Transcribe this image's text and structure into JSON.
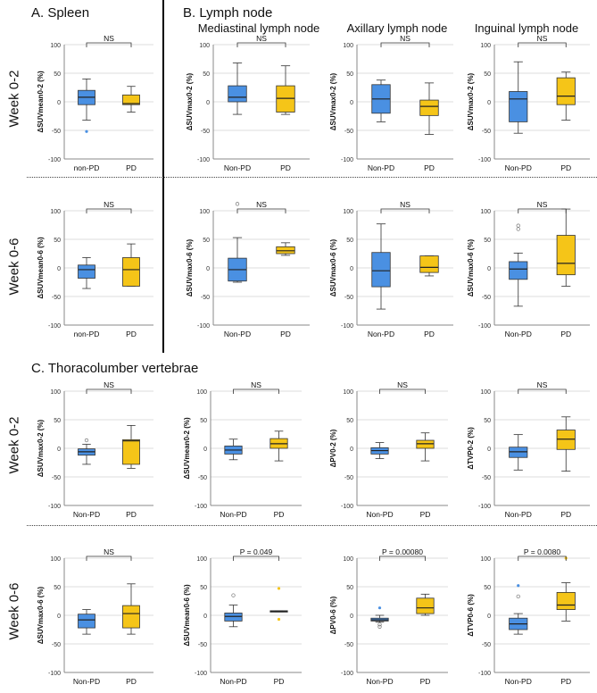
{
  "headers": {
    "spleen": "A.  Spleen",
    "lymph": "B.  Lymph node",
    "vertebrae": "C.  Thoracolumber vertebrae",
    "mediastinal": "Mediastinal lymph node",
    "axillary": "Axillary lymph node",
    "inguinal": "Inguinal lymph node"
  },
  "row_labels": {
    "a_w02": "Week 0-2",
    "a_w06": "Week 0-6",
    "c_w02": "Week 0-2",
    "c_w06": "Week 0-6"
  },
  "colors": {
    "nonpd": "#4a90e2",
    "pd": "#f5c518",
    "grid": "#dddddd"
  },
  "chart_data": [
    {
      "id": "a_spleen_w02",
      "type": "box",
      "ylabel": "ΔSUVmean0-2 (%)",
      "ylim": [
        -100,
        100
      ],
      "yticks": [
        -100,
        -50,
        0,
        50,
        100
      ],
      "categories": [
        "non-PD",
        "PD"
      ],
      "annotation": "NS",
      "boxes": [
        {
          "q1": -5,
          "median": 8,
          "q3": 20,
          "min": -32,
          "max": 40,
          "outliers": [
            {
              "y": -52,
              "style": "dot"
            }
          ]
        },
        {
          "q1": -5,
          "median": -3,
          "q3": 12,
          "min": -18,
          "max": 27,
          "outliers": []
        }
      ]
    },
    {
      "id": "b_med_w02",
      "type": "box",
      "ylabel": "ΔSUVmax0-2 (%)",
      "ylim": [
        -100,
        100
      ],
      "yticks": [
        -100,
        -50,
        0,
        50,
        100
      ],
      "categories": [
        "Non-PD",
        "PD"
      ],
      "annotation": "NS",
      "boxes": [
        {
          "q1": 0,
          "median": 8,
          "q3": 28,
          "min": -22,
          "max": 68,
          "outliers": []
        },
        {
          "q1": -18,
          "median": 6,
          "q3": 28,
          "min": -22,
          "max": 63,
          "outliers": []
        }
      ]
    },
    {
      "id": "b_ax_w02",
      "type": "box",
      "ylabel": "ΔSUVmax0-2 (%)",
      "ylim": [
        -100,
        100
      ],
      "yticks": [
        -100,
        -50,
        0,
        50,
        100
      ],
      "categories": [
        "Non-PD",
        "PD"
      ],
      "annotation": "NS",
      "boxes": [
        {
          "q1": -20,
          "median": 5,
          "q3": 30,
          "min": -35,
          "max": 38,
          "outliers": []
        },
        {
          "q1": -24,
          "median": -8,
          "q3": 3,
          "min": -57,
          "max": 33,
          "outliers": []
        }
      ]
    },
    {
      "id": "b_ing_w02",
      "type": "box",
      "ylabel": "ΔSUVmax0-2 (%)",
      "ylim": [
        -100,
        100
      ],
      "yticks": [
        -100,
        -50,
        0,
        50,
        100
      ],
      "categories": [
        "Non-PD",
        "PD"
      ],
      "annotation": "NS",
      "boxes": [
        {
          "q1": -35,
          "median": 5,
          "q3": 18,
          "min": -55,
          "max": 70,
          "outliers": []
        },
        {
          "q1": -5,
          "median": 10,
          "q3": 42,
          "min": -32,
          "max": 52,
          "outliers": []
        }
      ]
    },
    {
      "id": "a_spleen_w06",
      "type": "box",
      "ylabel": "ΔSUVmean0-6 (%)",
      "ylim": [
        -100,
        100
      ],
      "yticks": [
        -100,
        -50,
        0,
        50,
        100
      ],
      "categories": [
        "non-PD",
        "PD"
      ],
      "annotation": "NS",
      "boxes": [
        {
          "q1": -18,
          "median": -3,
          "q3": 5,
          "min": -36,
          "max": 18,
          "outliers": []
        },
        {
          "q1": -32,
          "median": -3,
          "q3": 18,
          "min": -32,
          "max": 42,
          "outliers": []
        }
      ]
    },
    {
      "id": "b_med_w06",
      "type": "box",
      "ylabel": "ΔSUVmax0-6 (%)",
      "ylim": [
        -100,
        100
      ],
      "yticks": [
        -100,
        -50,
        0,
        50,
        100
      ],
      "categories": [
        "Non-PD",
        "PD"
      ],
      "annotation": "NS",
      "boxes": [
        {
          "q1": -23,
          "median": -3,
          "q3": 17,
          "min": -25,
          "max": 53,
          "outliers": [
            {
              "y": 112,
              "style": "circle"
            }
          ]
        },
        {
          "q1": 25,
          "median": 30,
          "q3": 37,
          "min": 22,
          "max": 44,
          "outliers": []
        }
      ]
    },
    {
      "id": "b_ax_w06",
      "type": "box",
      "ylabel": "ΔSUVmax0-6 (%)",
      "ylim": [
        -100,
        100
      ],
      "yticks": [
        -100,
        -50,
        0,
        50,
        100
      ],
      "categories": [
        "Non-PD",
        "PD"
      ],
      "annotation": "NS",
      "boxes": [
        {
          "q1": -33,
          "median": -5,
          "q3": 27,
          "min": -72,
          "max": 77,
          "outliers": []
        },
        {
          "q1": -8,
          "median": 1,
          "q3": 21,
          "min": -14,
          "max": 21,
          "outliers": []
        }
      ]
    },
    {
      "id": "b_ing_w06",
      "type": "box",
      "ylabel": "ΔSUVmax0-6 (%)",
      "ylim": [
        -100,
        100
      ],
      "yticks": [
        -100,
        -50,
        0,
        50,
        100
      ],
      "categories": [
        "Non-PD",
        "PD"
      ],
      "annotation": "NS",
      "boxes": [
        {
          "q1": -20,
          "median": -2,
          "q3": 11,
          "min": -67,
          "max": 26,
          "outliers": [
            {
              "y": 74,
              "style": "circle"
            },
            {
              "y": 68,
              "style": "circle"
            }
          ]
        },
        {
          "q1": -12,
          "median": 8,
          "q3": 57,
          "min": -32,
          "max": 103,
          "outliers": []
        }
      ]
    },
    {
      "id": "c_suvmax_w02",
      "type": "box",
      "ylabel": "ΔSUVmax0-2 (%)",
      "ylim": [
        -100,
        100
      ],
      "yticks": [
        -100,
        -50,
        0,
        50,
        100
      ],
      "categories": [
        "Non-PD",
        "PD"
      ],
      "annotation": "NS",
      "boxes": [
        {
          "q1": -12,
          "median": -6,
          "q3": -1,
          "min": -28,
          "max": 7,
          "outliers": [
            {
              "y": 14,
              "style": "circle"
            }
          ]
        },
        {
          "q1": -28,
          "median": 13,
          "q3": 15,
          "min": -35,
          "max": 40,
          "outliers": []
        }
      ]
    },
    {
      "id": "c_suvmean_w02",
      "type": "box",
      "ylabel": "ΔSUVmean0-2 (%)",
      "ylim": [
        -100,
        100
      ],
      "yticks": [
        -100,
        -50,
        0,
        50,
        100
      ],
      "categories": [
        "Non-PD",
        "PD"
      ],
      "annotation": "NS",
      "boxes": [
        {
          "q1": -10,
          "median": -3,
          "q3": 4,
          "min": -20,
          "max": 16,
          "outliers": []
        },
        {
          "q1": 0,
          "median": 8,
          "q3": 17,
          "min": -22,
          "max": 30,
          "outliers": []
        }
      ]
    },
    {
      "id": "c_pv_w02",
      "type": "box",
      "ylabel": "ΔPV0-2 (%)",
      "ylim": [
        -100,
        100
      ],
      "yticks": [
        -100,
        -50,
        0,
        50,
        100
      ],
      "categories": [
        "Non-PD",
        "PD"
      ],
      "annotation": "NS",
      "boxes": [
        {
          "q1": -10,
          "median": -4,
          "q3": 1,
          "min": -18,
          "max": 10,
          "outliers": []
        },
        {
          "q1": 0,
          "median": 8,
          "q3": 14,
          "min": -22,
          "max": 27,
          "outliers": []
        }
      ]
    },
    {
      "id": "c_tv_w02",
      "type": "box",
      "ylabel": "ΔTVP0-2 (%)",
      "ylim": [
        -100,
        100
      ],
      "yticks": [
        -100,
        -50,
        0,
        50,
        100
      ],
      "categories": [
        "Non-PD",
        "PD"
      ],
      "annotation": "NS",
      "boxes": [
        {
          "q1": -16,
          "median": -6,
          "q3": 2,
          "min": -38,
          "max": 24,
          "outliers": []
        },
        {
          "q1": -2,
          "median": 16,
          "q3": 32,
          "min": -40,
          "max": 55,
          "outliers": []
        }
      ]
    },
    {
      "id": "c_suvmax_w06",
      "type": "box",
      "ylabel": "ΔSUVmax0-6 (%)",
      "ylim": [
        -100,
        100
      ],
      "yticks": [
        -100,
        -50,
        0,
        50,
        100
      ],
      "categories": [
        "Non-PD",
        "PD"
      ],
      "annotation": "NS",
      "boxes": [
        {
          "q1": -22,
          "median": -8,
          "q3": 2,
          "min": -33,
          "max": 10,
          "outliers": []
        },
        {
          "q1": -22,
          "median": 3,
          "q3": 17,
          "min": -33,
          "max": 55,
          "outliers": []
        }
      ]
    },
    {
      "id": "c_suvmean_w06",
      "type": "box",
      "ylabel": "ΔSUVmean0-6 (%)",
      "ylim": [
        -100,
        100
      ],
      "yticks": [
        -100,
        -50,
        0,
        50,
        100
      ],
      "categories": [
        "Non-PD",
        "PD"
      ],
      "annotation": "P = 0.049",
      "boxes": [
        {
          "q1": -10,
          "median": -2,
          "q3": 4,
          "min": -20,
          "max": 18,
          "outliers": [
            {
              "y": 35,
              "style": "circle"
            }
          ]
        },
        {
          "q1": 6,
          "median": 7,
          "q3": 8,
          "min": 6,
          "max": 8,
          "outliers": [
            {
              "y": 47,
              "style": "dot"
            },
            {
              "y": -7,
              "style": "dot"
            }
          ]
        }
      ]
    },
    {
      "id": "c_pv_w06",
      "type": "box",
      "ylabel": "ΔPV0-6 (%)",
      "ylim": [
        -100,
        100
      ],
      "yticks": [
        -100,
        -50,
        0,
        50,
        100
      ],
      "categories": [
        "Non-PD",
        "PD"
      ],
      "annotation": "P = 0.00080",
      "boxes": [
        {
          "q1": -10,
          "median": -8,
          "q3": -5,
          "min": -12,
          "max": 0,
          "outliers": [
            {
              "y": 13,
              "style": "dot"
            },
            {
              "y": -16,
              "style": "circle"
            },
            {
              "y": -20,
              "style": "circle"
            }
          ]
        },
        {
          "q1": 3,
          "median": 13,
          "q3": 30,
          "min": 0,
          "max": 37,
          "outliers": []
        }
      ]
    },
    {
      "id": "c_tv_w06",
      "type": "box",
      "ylabel": "ΔTVP0-6 (%)",
      "ylim": [
        -100,
        100
      ],
      "yticks": [
        -100,
        -50,
        0,
        50,
        100
      ],
      "categories": [
        "Non-PD",
        "PD"
      ],
      "annotation": "P = 0.0080",
      "boxes": [
        {
          "q1": -25,
          "median": -15,
          "q3": -5,
          "min": -33,
          "max": 3,
          "outliers": [
            {
              "y": 52,
              "style": "dot"
            },
            {
              "y": 33,
              "style": "circle"
            }
          ]
        },
        {
          "q1": 10,
          "median": 18,
          "q3": 40,
          "min": -10,
          "max": 57,
          "outliers": [
            {
              "y": 100,
              "style": "dot"
            }
          ]
        }
      ]
    }
  ]
}
